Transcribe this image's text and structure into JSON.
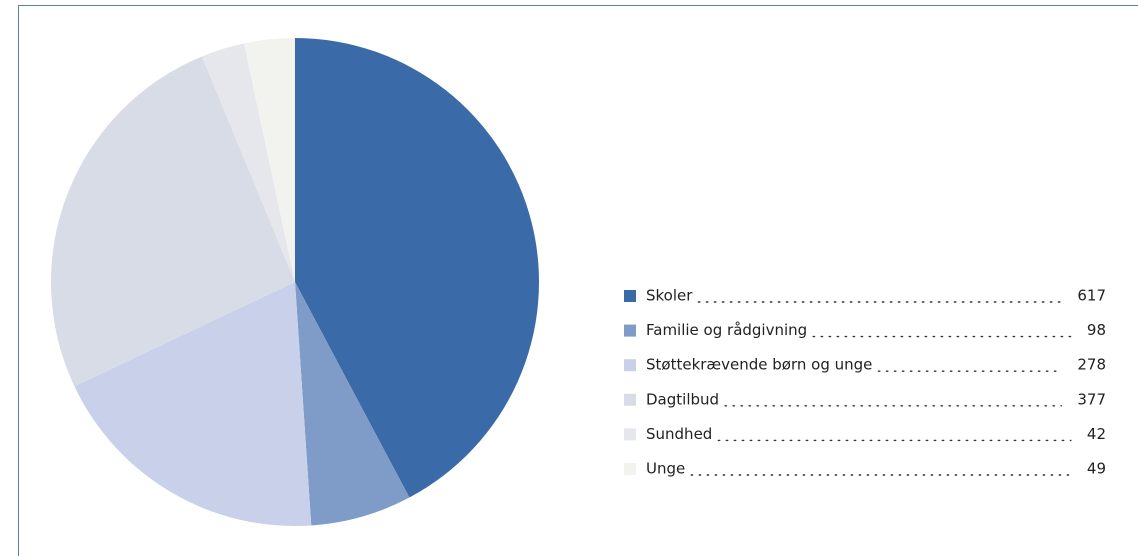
{
  "chart_data": {
    "type": "pie",
    "categories": [
      "Skoler",
      "Familie og rådgivning",
      "Støttekrævende børn og unge",
      "Dagtilbud",
      "Sundhed",
      "Unge"
    ],
    "values": [
      617,
      98,
      278,
      377,
      42,
      49
    ],
    "colors": [
      "#3a6ba8",
      "#7f9bc8",
      "#c8d0ea",
      "#d8dce6",
      "#e6e7ec",
      "#f2f3ee"
    ],
    "legend": "right"
  }
}
